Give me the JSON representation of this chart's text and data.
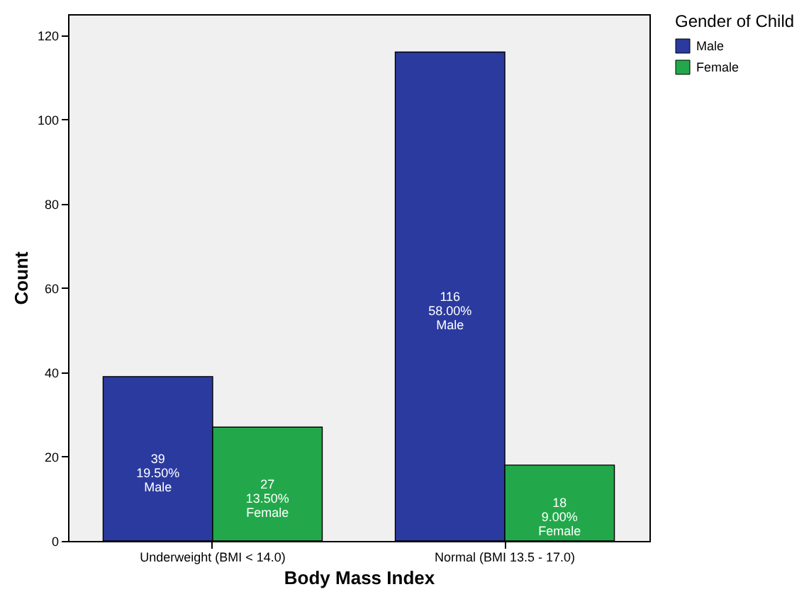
{
  "chart_data": {
    "type": "bar",
    "xlabel": "Body Mass Index",
    "ylabel": "Count",
    "legend_title": "Gender of Child",
    "legend": "top right",
    "categories": [
      "Underweight (BMI < 14.0)",
      "Normal (BMI 13.5 - 17.0)"
    ],
    "series": [
      {
        "name": "Male",
        "color": "#2b3a9e",
        "values": [
          39,
          116
        ],
        "value_labels": [
          "39\n19.50%\nMale",
          "116\n58.00%\nMale"
        ]
      },
      {
        "name": "Female",
        "color": "#22a84a",
        "values": [
          27,
          18
        ],
        "value_labels": [
          "27\n13.50%\nFemale",
          "18\n9.00%\nFemale"
        ]
      }
    ],
    "ylim": [
      0,
      125
    ],
    "yticks": [
      0,
      20,
      40,
      60,
      80,
      100,
      120
    ]
  }
}
